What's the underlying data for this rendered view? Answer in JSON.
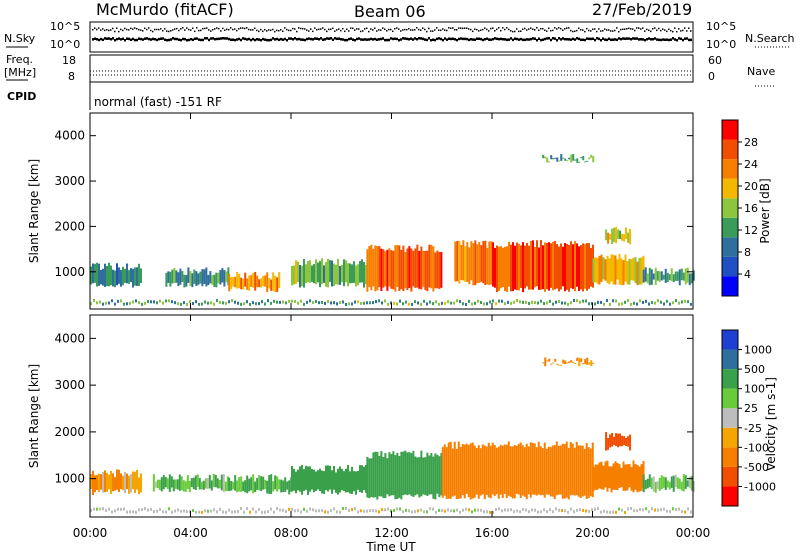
{
  "header": {
    "station": "McMurdo (fitACF)",
    "beam": "Beam 06",
    "date": "27/Feb/2019"
  },
  "top_panels": {
    "nsky_label": "N.Sky",
    "nsearch_label": "N.Search",
    "freq_label": "Freq.",
    "freq_unit": "[MHz]",
    "nave_label": "Nave",
    "cpid_label": "CPID",
    "cpid_text": "normal (fast) -151 RF",
    "noise_ticks_left": [
      "10^5",
      "10^0"
    ],
    "noise_ticks_right": [
      "10^5",
      "10^0"
    ],
    "freq_ticks_left": [
      "18",
      "8"
    ],
    "nave_ticks_right": [
      "60",
      "0"
    ]
  },
  "colors": {
    "power_scale": [
      "#0000ff",
      "#1f4fc2",
      "#2e6f9e",
      "#3a9b5b",
      "#8cc63f",
      "#f5b800",
      "#f77f00",
      "#f24e00",
      "#ff0000"
    ],
    "velocity_scale": [
      "#ff0000",
      "#f24e00",
      "#f77f00",
      "#f5a500",
      "#bdbdbd",
      "#6acb3a",
      "#3aa04a",
      "#2e6f9e",
      "#1f3fd2"
    ]
  },
  "chart_data": [
    {
      "type": "heatmap",
      "name": "power",
      "ylabel": "Slant Range [km]",
      "ylim": [
        180,
        4500
      ],
      "yticks": [
        "4000",
        "3000",
        "2000",
        "1000"
      ],
      "colorbar_label": "Power [dB]",
      "colorbar_ticks": [
        "28",
        "24",
        "20",
        "16",
        "12",
        "8",
        "4"
      ],
      "colorbar_range": [
        0,
        32
      ],
      "regions": [
        {
          "t0": 0.0,
          "t1": 2.0,
          "r0": 650,
          "r1": 1200,
          "value": 10
        },
        {
          "t0": 3.0,
          "t1": 5.5,
          "r0": 650,
          "r1": 1100,
          "value": 11
        },
        {
          "t0": 5.5,
          "t1": 7.5,
          "r0": 550,
          "r1": 1000,
          "value": 22
        },
        {
          "t0": 8.0,
          "t1": 11.0,
          "r0": 650,
          "r1": 1300,
          "value": 14
        },
        {
          "t0": 11.0,
          "t1": 14.0,
          "r0": 550,
          "r1": 1600,
          "value": 26
        },
        {
          "t0": 14.5,
          "t1": 16.0,
          "r0": 700,
          "r1": 1700,
          "value": 24
        },
        {
          "t0": 16.0,
          "t1": 20.0,
          "r0": 550,
          "r1": 1700,
          "value": 27
        },
        {
          "t0": 20.0,
          "t1": 22.0,
          "r0": 700,
          "r1": 1400,
          "value": 20
        },
        {
          "t0": 22.0,
          "t1": 24.0,
          "r0": 700,
          "r1": 1100,
          "value": 12
        },
        {
          "t0": 18.0,
          "t1": 20.0,
          "r0": 3400,
          "r1": 3600,
          "value": 12
        },
        {
          "t0": 20.5,
          "t1": 21.5,
          "r0": 1600,
          "r1": 2000,
          "value": 18
        }
      ]
    },
    {
      "type": "heatmap",
      "name": "velocity",
      "ylabel": "Slant Range [km]",
      "ylim": [
        180,
        4500
      ],
      "yticks": [
        "4000",
        "3000",
        "2000",
        "1000"
      ],
      "colorbar_label": "Velocity [m s-1]",
      "colorbar_ticks": [
        "1000",
        "500",
        "100",
        "25",
        "-25",
        "-100",
        "-500",
        "-1000"
      ],
      "regions": [
        {
          "t0": 0.0,
          "t1": 2.0,
          "r0": 650,
          "r1": 1200,
          "value": -100
        },
        {
          "t0": 2.5,
          "t1": 5.5,
          "r0": 700,
          "r1": 1100,
          "value": 100
        },
        {
          "t0": 5.5,
          "t1": 8.0,
          "r0": 650,
          "r1": 1100,
          "value": 150
        },
        {
          "t0": 8.0,
          "t1": 11.0,
          "r0": 650,
          "r1": 1300,
          "value": 250
        },
        {
          "t0": 11.0,
          "t1": 14.0,
          "r0": 550,
          "r1": 1600,
          "value": 300
        },
        {
          "t0": 14.0,
          "t1": 20.0,
          "r0": 550,
          "r1": 1800,
          "value": -300
        },
        {
          "t0": 20.0,
          "t1": 22.0,
          "r0": 700,
          "r1": 1400,
          "value": -200
        },
        {
          "t0": 22.0,
          "t1": 24.0,
          "r0": 700,
          "r1": 1100,
          "value": 100
        },
        {
          "t0": 18.0,
          "t1": 20.0,
          "r0": 3400,
          "r1": 3600,
          "value": -150
        },
        {
          "t0": 20.5,
          "t1": 21.5,
          "r0": 1600,
          "r1": 2000,
          "value": -600
        }
      ]
    }
  ],
  "x_axis": {
    "label": "Time UT",
    "ticks": [
      "00:00",
      "04:00",
      "08:00",
      "12:00",
      "16:00",
      "20:00",
      "00:00"
    ],
    "range_hours": [
      0,
      24
    ]
  }
}
